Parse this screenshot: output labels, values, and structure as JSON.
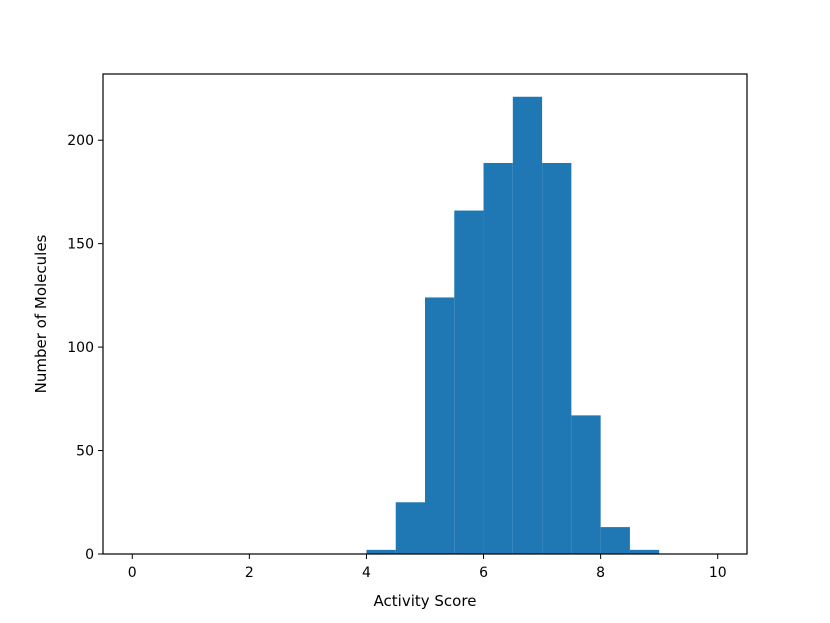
{
  "chart_data": {
    "type": "bar",
    "title": "",
    "xlabel": "Activity Score",
    "ylabel": "Number of Molecules",
    "xlim": [
      -0.5,
      10.5
    ],
    "ylim": [
      0,
      232
    ],
    "x_ticks": [
      0,
      2,
      4,
      6,
      8,
      10
    ],
    "y_ticks": [
      0,
      50,
      100,
      150,
      200
    ],
    "bin_width": 0.5,
    "bins": [
      {
        "x0": 4.0,
        "x1": 4.5,
        "count": 2
      },
      {
        "x0": 4.5,
        "x1": 5.0,
        "count": 25
      },
      {
        "x0": 5.0,
        "x1": 5.5,
        "count": 124
      },
      {
        "x0": 5.5,
        "x1": 6.0,
        "count": 166
      },
      {
        "x0": 6.0,
        "x1": 6.5,
        "count": 189
      },
      {
        "x0": 6.5,
        "x1": 7.0,
        "count": 221
      },
      {
        "x0": 7.0,
        "x1": 7.5,
        "count": 189
      },
      {
        "x0": 7.5,
        "x1": 8.0,
        "count": 67
      },
      {
        "x0": 8.0,
        "x1": 8.5,
        "count": 13
      },
      {
        "x0": 8.5,
        "x1": 9.0,
        "count": 2
      }
    ],
    "bar_color": "#1f77b4",
    "grid": false,
    "legend": "none"
  }
}
